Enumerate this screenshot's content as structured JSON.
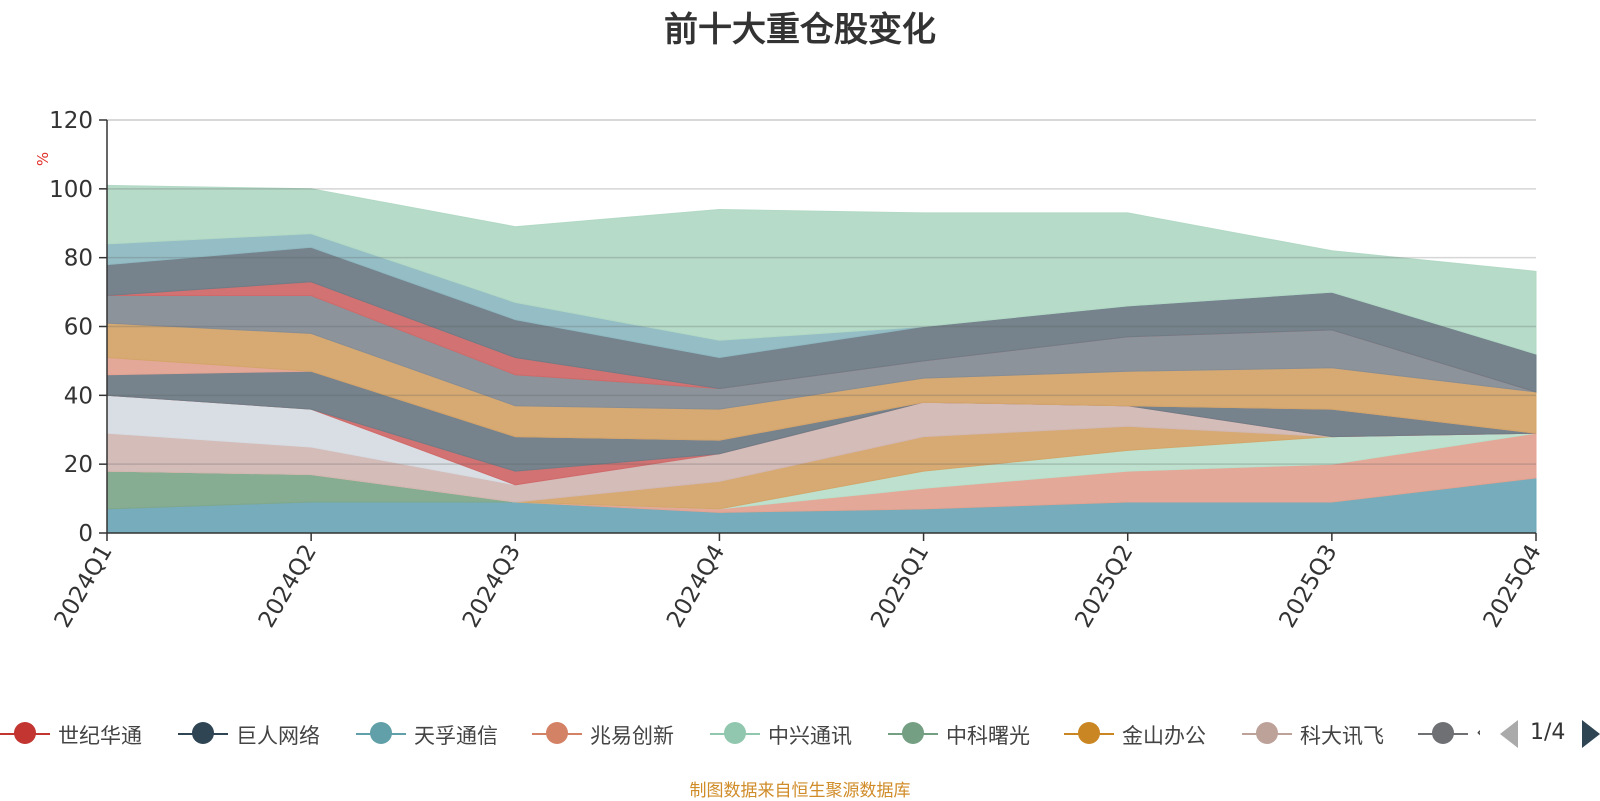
{
  "chart_data": {
    "type": "area",
    "title": "前十大重仓股变化",
    "ylabel": "%",
    "xlabel": "",
    "categories": [
      "2024Q1",
      "2024Q2",
      "2024Q3",
      "2024Q4",
      "2025Q1",
      "2025Q2",
      "2025Q3",
      "2025Q4"
    ],
    "ylim": [
      0,
      120
    ],
    "yticks": [
      0,
      20,
      40,
      60,
      80,
      100,
      120
    ],
    "grid": true,
    "stacked": true,
    "legend_position": "bottom",
    "series": [
      {
        "name": "",
        "color": "#6fa8b8",
        "values": [
          7,
          9,
          9,
          6,
          7,
          9,
          9,
          16
        ]
      },
      {
        "name": "",
        "color": "#7fa88c",
        "values": [
          11,
          8,
          0,
          0,
          0,
          0,
          0,
          0
        ]
      },
      {
        "name": "",
        "color": "#e3a393",
        "values": [
          0,
          0,
          0,
          1,
          6,
          9,
          11,
          13
        ]
      },
      {
        "name": "",
        "color": "#b9dfcb",
        "values": [
          0,
          0,
          0,
          0,
          5,
          6,
          8,
          0
        ]
      },
      {
        "name": "",
        "color": "#d4a56a",
        "values": [
          0,
          0,
          0,
          8,
          10,
          7,
          0,
          0
        ]
      },
      {
        "name": "",
        "color": "#d2b8b5",
        "values": [
          11,
          8,
          5,
          8,
          10,
          6,
          0,
          0
        ]
      },
      {
        "name": "",
        "color": "#d6dce2",
        "values": [
          11,
          11,
          0,
          0,
          0,
          0,
          0,
          0
        ]
      },
      {
        "name": "",
        "color": "#d06a6a",
        "values": [
          0,
          0,
          4,
          0,
          0,
          0,
          0,
          0
        ]
      },
      {
        "name": "",
        "color": "#6f7c86",
        "values": [
          6,
          11,
          10,
          4,
          0,
          0,
          8,
          0
        ]
      },
      {
        "name": "",
        "color": "#e3a393",
        "values": [
          5,
          0,
          0,
          0,
          0,
          0,
          0,
          0
        ]
      },
      {
        "name": "",
        "color": "#d4a56a",
        "values": [
          10,
          11,
          9,
          9,
          7,
          10,
          12,
          12
        ]
      },
      {
        "name": "",
        "color": "#868d96",
        "values": [
          8,
          11,
          9,
          6,
          5,
          10,
          11,
          0
        ]
      },
      {
        "name": "",
        "color": "#d06a6a",
        "values": [
          0,
          4,
          5,
          0,
          0,
          0,
          0,
          0
        ]
      },
      {
        "name": "",
        "color": "#6f7c86",
        "values": [
          9,
          10,
          11,
          9,
          10,
          9,
          11,
          11
        ]
      },
      {
        "name": "",
        "color": "#8fb9c2",
        "values": [
          6,
          4,
          5,
          5,
          0,
          0,
          0,
          0
        ]
      },
      {
        "name": "",
        "color": "#b2d9c5",
        "values": [
          17,
          13,
          22,
          38,
          33,
          27,
          12,
          24
        ]
      }
    ]
  },
  "legend": {
    "items": [
      {
        "label": "世纪华通",
        "color": "#c23531"
      },
      {
        "label": "巨人网络",
        "color": "#2f4554"
      },
      {
        "label": "天孚通信",
        "color": "#61a0a8"
      },
      {
        "label": "兆易创新",
        "color": "#d48265"
      },
      {
        "label": "中兴通讯",
        "color": "#91c7ae"
      },
      {
        "label": "中科曙光",
        "color": "#749f83"
      },
      {
        "label": "金山办公",
        "color": "#ca8622"
      },
      {
        "label": "科大讯飞",
        "color": "#bda29a"
      },
      {
        "label": "‹",
        "color": "#6e7074"
      }
    ],
    "page": "1/4"
  },
  "source": "制图数据来自恒生聚源数据库"
}
